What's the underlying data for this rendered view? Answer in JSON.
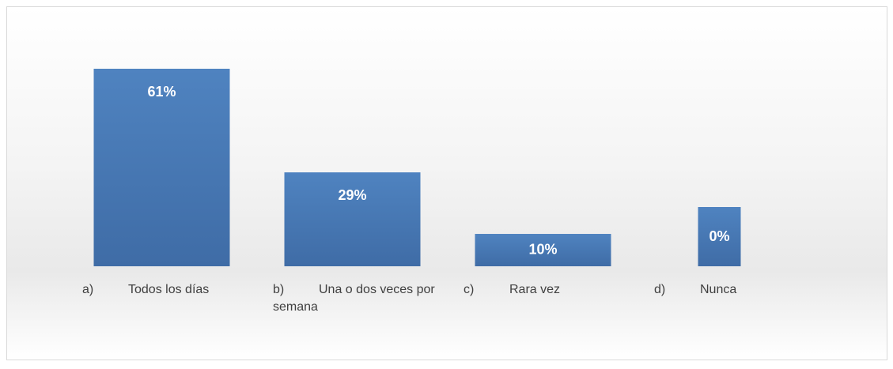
{
  "chart_data": {
    "type": "bar",
    "categories": [
      "a)\tTodos los días",
      "b)\tUna o dos veces por semana",
      "c)\tRara vez",
      "d)\tNunca"
    ],
    "values": [
      61,
      29,
      10,
      0
    ],
    "value_labels": [
      "61%",
      "29%",
      "10%",
      "0%"
    ],
    "color": "#4a7ab5"
  }
}
